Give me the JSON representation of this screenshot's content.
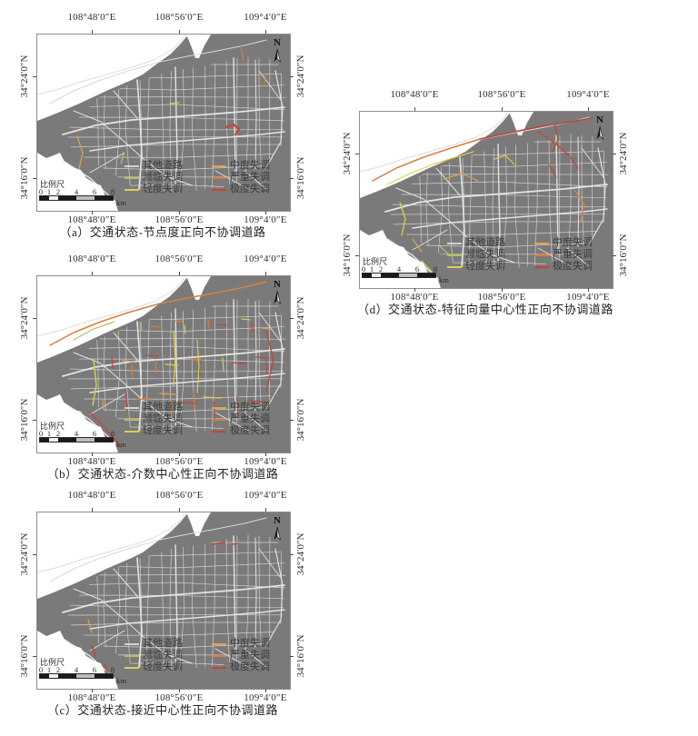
{
  "figure": {
    "shared": {
      "lon_labels": [
        "108°48′0″E",
        "108°56′0″E",
        "109°4′0″E"
      ],
      "lat_labels": [
        "34°24′0″N",
        "34°16′0″N"
      ],
      "north_label": "N",
      "scalebar": {
        "title": "比例尺",
        "ticks": [
          "0",
          "1",
          "2",
          "4",
          "6",
          "8"
        ],
        "unit": "km"
      },
      "legend_items": [
        {
          "label": "其他道路",
          "color": "#d2d2d2"
        },
        {
          "label": "濒临失调",
          "color": "#b9bd66"
        },
        {
          "label": "轻度失调",
          "color": "#decf52"
        },
        {
          "label": "中度失调",
          "color": "#e0a452"
        },
        {
          "label": "严重失调",
          "color": "#d8803c"
        },
        {
          "label": "极度失调",
          "color": "#bf4636"
        }
      ],
      "colors": {
        "map_bg": "#7a7a7a",
        "road": "#cfcfcf",
        "road_major": "#e3e3e3",
        "river": "#dcdcdc"
      }
    },
    "panels": [
      {
        "id": "a",
        "caption": "（a）交通状态-节点度正向不协调道路"
      },
      {
        "id": "b",
        "caption": "（b）交通状态-介数中心性正向不协调道路"
      },
      {
        "id": "c",
        "caption": "（c）交通状态-接近中心性正向不协调道路"
      },
      {
        "id": "d",
        "caption": "（d）交通状态-特征向量中心性正向不协调道路"
      }
    ]
  }
}
